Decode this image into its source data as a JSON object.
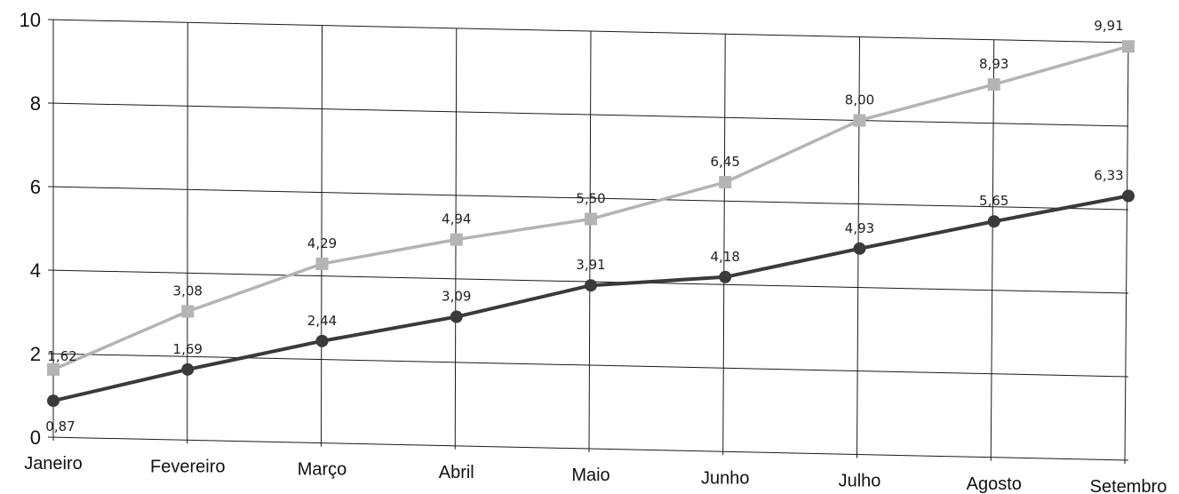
{
  "chart_data": {
    "type": "line",
    "categories": [
      "Janeiro",
      "Fevereiro",
      "Março",
      "Abril",
      "Maio",
      "Junho",
      "Julho",
      "Agosto",
      "Setembro"
    ],
    "series": [
      {
        "values": [
          1.62,
          3.08,
          4.29,
          4.94,
          5.5,
          6.45,
          8.0,
          8.93,
          9.91
        ],
        "labels": [
          "1,62",
          "3,08",
          "4,29",
          "4,94",
          "5,50",
          "6,45",
          "8,00",
          "8,93",
          "9,91"
        ],
        "color": "#b4b4b4",
        "marker": "square"
      },
      {
        "values": [
          0.87,
          1.69,
          2.44,
          3.09,
          3.91,
          4.18,
          4.93,
          5.65,
          6.33
        ],
        "labels": [
          "0,87",
          "1,69",
          "2,44",
          "3,09",
          "3,91",
          "4,18",
          "4,93",
          "5,65",
          "6,33"
        ],
        "color": "#3a3a3a",
        "marker": "circle"
      }
    ],
    "ylim": [
      0,
      10
    ],
    "yticks": [
      "0",
      "2",
      "4",
      "6",
      "8",
      "10"
    ],
    "grid": true,
    "title": "",
    "xlabel": "",
    "ylabel": ""
  }
}
